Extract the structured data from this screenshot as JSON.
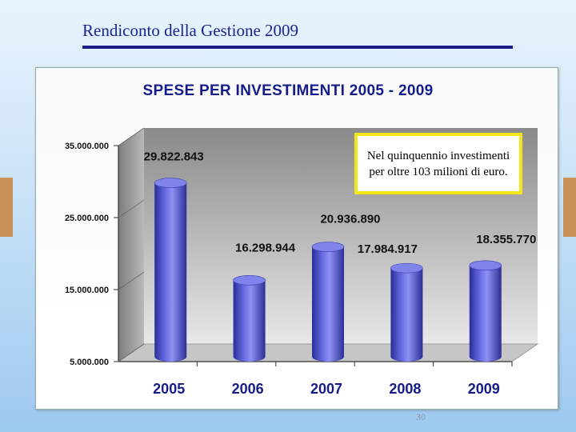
{
  "header": {
    "title": "Rendiconto della Gestione 2009"
  },
  "note": {
    "text": "Nel quinquennio investimenti per oltre 103 milioni di euro."
  },
  "footer": {
    "page_number": "30"
  },
  "colors": {
    "title": "#151c8a",
    "bar": "#4a4fd0",
    "note_border": "#f2e51a",
    "side_accent": "#c9925a"
  },
  "chart_data": {
    "type": "bar",
    "style": "3d-cylinder",
    "title": "SPESE PER INVESTIMENTI  2005 - 2009",
    "categories": [
      "2005",
      "2006",
      "2007",
      "2008",
      "2009"
    ],
    "values": [
      29822843,
      16298944,
      20936890,
      17984917,
      18355770
    ],
    "value_labels": [
      "29.822.843",
      "16.298.944",
      "20.936.890",
      "17.984.917",
      "18.355.770"
    ],
    "y_ticks": [
      5000000,
      15000000,
      25000000,
      35000000
    ],
    "y_tick_labels": [
      "5.000.000",
      "15.000.000",
      "25.000.000",
      "35.000.000"
    ],
    "ylim": [
      5000000,
      35000000
    ],
    "xlabel": "",
    "ylabel": "",
    "grid": false,
    "legend": "none"
  }
}
